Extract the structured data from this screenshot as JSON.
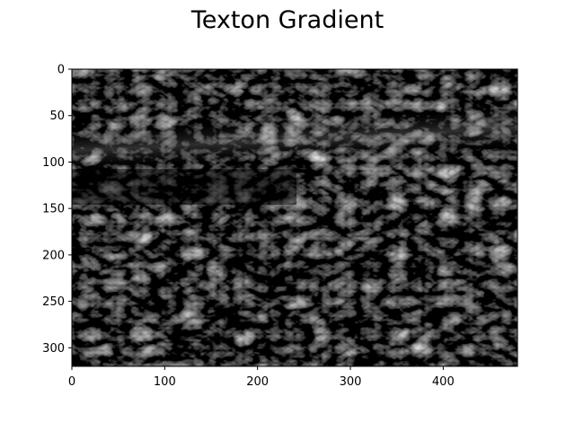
{
  "figure": {
    "title": "Texton Gradient"
  },
  "image_axes": {
    "x_range": [
      0,
      480
    ],
    "y_range": [
      0,
      320
    ],
    "x_ticks": [
      "0",
      "100",
      "200",
      "300",
      "400"
    ],
    "y_ticks": [
      "0",
      "50",
      "100",
      "150",
      "200",
      "250",
      "300"
    ],
    "x_tick_values": [
      0,
      100,
      200,
      300,
      400
    ],
    "y_tick_values": [
      0,
      50,
      100,
      150,
      200,
      250,
      300
    ],
    "colormap": "gray",
    "background_color": "#000000"
  }
}
